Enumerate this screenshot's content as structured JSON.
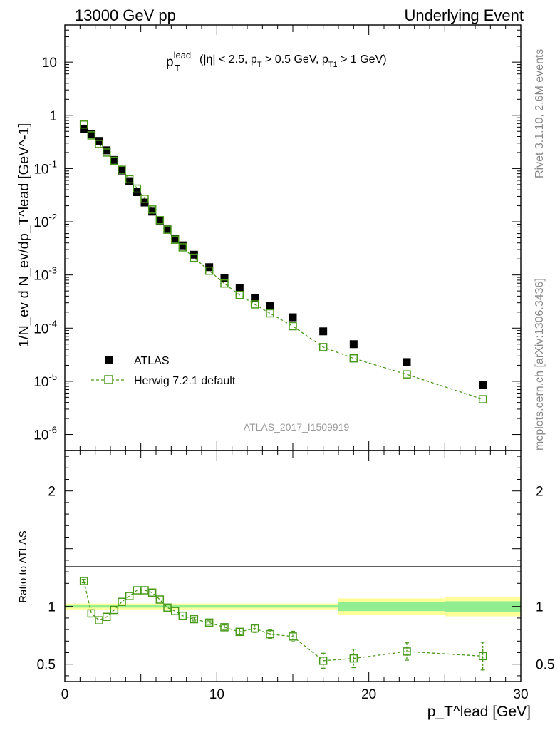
{
  "header": {
    "left": "13000 GeV pp",
    "right": "Underlying Event"
  },
  "side": {
    "rivet": "Rivet 3.1.10,  2.6M events",
    "mcplots": "mcplots.cern.ch [arXiv:1306.3436]"
  },
  "chart_data": [
    {
      "type": "scatter",
      "title_main": "p",
      "title_sup": "lead",
      "title_sub": "T",
      "title_rest1": " (|η| < 2.5, p",
      "title_sub2": "T",
      "title_rest2": " > 0.5 GeV, p",
      "title_sub3": "T1",
      "title_rest3": " > 1 GeV)",
      "ylabel": "1/N_ev d N_ev/dp_T^lead [GeV^-1]",
      "yscale": "log",
      "ylim": [
        5e-07,
        50
      ],
      "xlim": [
        0,
        30
      ],
      "ytick_labels": [
        "10",
        "1",
        "10^-1",
        "10^-2",
        "10^-3",
        "10^-4",
        "10^-5",
        "10^-6"
      ],
      "watermark": "ATLAS_2017_I1509919",
      "legend": {
        "position": "bottom-left",
        "entries": [
          "ATLAS",
          "Herwig 7.2.1 default"
        ]
      },
      "series": [
        {
          "name": "ATLAS",
          "color": "#000000",
          "x": [
            1.25,
            1.75,
            2.25,
            2.75,
            3.25,
            3.75,
            4.25,
            4.75,
            5.25,
            5.75,
            6.25,
            6.75,
            7.25,
            7.75,
            8.5,
            9.5,
            10.5,
            11.5,
            12.5,
            13.5,
            15.0,
            17.0,
            19.0,
            22.5,
            27.5
          ],
          "y": [
            0.55,
            0.45,
            0.33,
            0.22,
            0.145,
            0.092,
            0.058,
            0.036,
            0.023,
            0.0155,
            0.0105,
            0.0072,
            0.0048,
            0.0036,
            0.0024,
            0.0014,
            0.00088,
            0.00057,
            0.00037,
            0.00026,
            0.00016,
            8.7e-05,
            5e-05,
            2.3e-05,
            8.5e-06
          ]
        },
        {
          "name": "Herwig 7.2.1 default",
          "color": "#4a9a1a",
          "x": [
            1.25,
            1.75,
            2.25,
            2.75,
            3.25,
            3.75,
            4.25,
            4.75,
            5.25,
            5.75,
            6.25,
            6.75,
            7.25,
            7.75,
            8.5,
            9.5,
            10.5,
            11.5,
            12.5,
            13.5,
            15.0,
            17.0,
            19.0,
            22.5,
            27.5
          ],
          "y": [
            0.67,
            0.42,
            0.29,
            0.2,
            0.14,
            0.095,
            0.063,
            0.042,
            0.027,
            0.017,
            0.0107,
            0.0071,
            0.0046,
            0.0033,
            0.0021,
            0.0012,
            0.00069,
            0.00042,
            0.00028,
            0.00019,
            0.000109,
            4.4e-05,
            2.7e-05,
            1.35e-05,
            4.6e-06
          ]
        }
      ]
    },
    {
      "type": "scatter",
      "ylabel": "Ratio to ATLAS",
      "xlabel": "p_T^lead [GeV]",
      "xlim": [
        0,
        30
      ],
      "ylim": [
        0.35,
        2.35
      ],
      "xtick_labels": [
        "0",
        "10",
        "20",
        "30"
      ],
      "ytick_labels": [
        "0.5",
        "1",
        "2"
      ],
      "bands": [
        {
          "x": [
            0,
            18
          ],
          "stat": [
            0.99,
            1.01
          ],
          "total": [
            0.975,
            1.025
          ]
        },
        {
          "x": [
            18,
            25
          ],
          "stat": [
            0.96,
            1.04
          ],
          "total": [
            0.93,
            1.07
          ]
        },
        {
          "x": [
            25,
            30
          ],
          "stat": [
            0.955,
            1.045
          ],
          "total": [
            0.915,
            1.085
          ]
        }
      ],
      "series": [
        {
          "name": "Herwig 7.2.1 default",
          "color": "#4a9a1a",
          "x": [
            1.25,
            1.75,
            2.25,
            2.75,
            3.25,
            3.75,
            4.25,
            4.75,
            5.25,
            5.75,
            6.25,
            6.75,
            7.25,
            7.75,
            8.5,
            9.5,
            10.5,
            11.5,
            12.5,
            13.5,
            15.0,
            17.0,
            19.0,
            22.5,
            27.5
          ],
          "y": [
            1.22,
            0.94,
            0.88,
            0.91,
            0.97,
            1.04,
            1.09,
            1.14,
            1.14,
            1.12,
            1.06,
            0.99,
            0.96,
            0.92,
            0.89,
            0.86,
            0.82,
            0.78,
            0.81,
            0.76,
            0.74,
            0.53,
            0.55,
            0.61,
            0.57
          ],
          "yerr": [
            0.015,
            0.01,
            0.01,
            0.01,
            0.01,
            0.01,
            0.01,
            0.01,
            0.01,
            0.01,
            0.01,
            0.01,
            0.01,
            0.01,
            0.015,
            0.015,
            0.02,
            0.025,
            0.035,
            0.04,
            0.045,
            0.065,
            0.08,
            0.075,
            0.12
          ]
        }
      ]
    }
  ]
}
